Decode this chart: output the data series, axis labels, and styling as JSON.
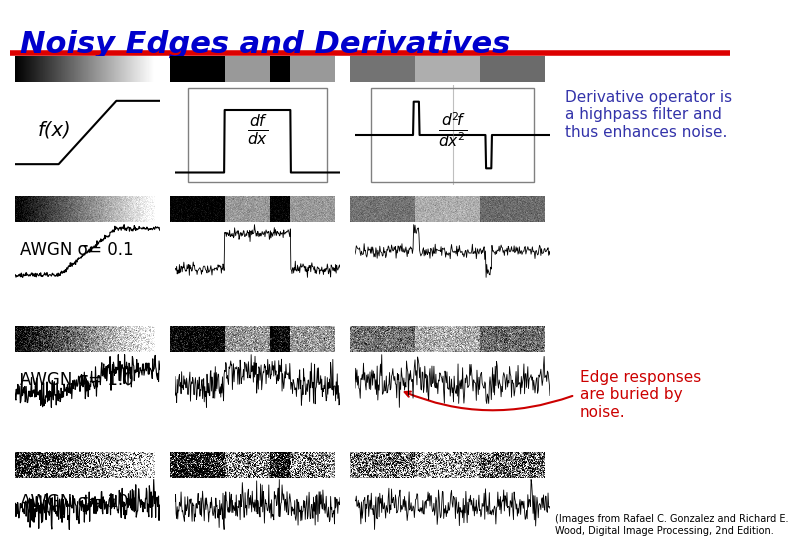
{
  "title": "Noisy Edges and Derivatives",
  "title_color": "#0000CC",
  "title_italic": true,
  "title_fontsize": 22,
  "bg_color": "#FFFFFF",
  "red_line_color": "#DD0000",
  "annotation1_text": "Derivative operator is\na highpass filter and\nthus enhances noise.",
  "annotation1_color": "#3333AA",
  "annotation2_text": "Edge responses\nare buried by\nnoise.",
  "annotation2_color": "#CC0000",
  "label_fx": "f(x)",
  "label_awgn01": "AWGN σ= 0.1",
  "label_awgn10": "AWGN σ= 1.0",
  "label_awgn100": "AWGN σ= 10",
  "caption": "(Images from Rafael C. Gonzalez and Richard E.\nWood, Digital Image Processing, 2nd Edition.",
  "deriv1_latex": "$\\dfrac{df}{dx}$",
  "deriv2_latex": "$\\dfrac{d^2\\!f}{dx^2}$"
}
